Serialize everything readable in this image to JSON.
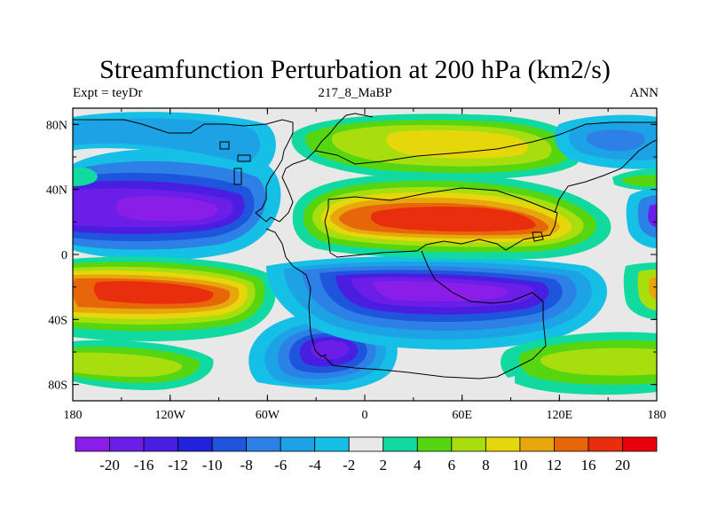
{
  "chart_data": {
    "type": "heatmap",
    "title": "Streamfunction Perturbation at 200 hPa (km2/s)",
    "left_label": "Expt = teyDr",
    "center_label": "217_8_MaBP",
    "right_label": "ANN",
    "x_ticks": [
      "180",
      "120W",
      "60W",
      "0",
      "60E",
      "120E",
      "180"
    ],
    "x_tick_values": [
      -180,
      -120,
      -60,
      0,
      60,
      120,
      180
    ],
    "y_ticks": [
      "80N",
      "40N",
      "0",
      "40S",
      "80S"
    ],
    "y_tick_values": [
      80,
      40,
      0,
      -40,
      -80
    ],
    "xlim": [
      -180,
      180
    ],
    "ylim": [
      -90,
      90
    ],
    "colorbar_levels": [
      "-20",
      "-16",
      "-12",
      "-10",
      "-8",
      "-6",
      "-4",
      "-2",
      "2",
      "4",
      "6",
      "8",
      "10",
      "12",
      "16",
      "20"
    ],
    "colorbar_colors": [
      "#8a1ee8",
      "#6a1ee8",
      "#4a1ee0",
      "#2222dd",
      "#1f55dd",
      "#2c80e6",
      "#1da2e6",
      "#16bfe6",
      "#e8e8e8",
      "#12d9a0",
      "#55d611",
      "#a8dd0e",
      "#e6d60c",
      "#e6a60c",
      "#e8660a",
      "#e82e0c",
      "#e8000c"
    ],
    "features": [
      {
        "name": "negative-center-north-pacific",
        "lon": -120,
        "lat": 23,
        "value": -20
      },
      {
        "name": "positive-center-south-pacific",
        "lon": -120,
        "lat": -18,
        "value": 16
      },
      {
        "name": "negative-center-south-indian",
        "lon": 60,
        "lat": -18,
        "value": -18
      },
      {
        "name": "positive-center-asia",
        "lon": 45,
        "lat": 22,
        "value": 18
      },
      {
        "name": "negative-center-antarctic",
        "lon": -10,
        "lat": -60,
        "value": -16
      },
      {
        "name": "positive-center-north-asia",
        "lon": 45,
        "lat": 68,
        "value": 6
      }
    ]
  }
}
